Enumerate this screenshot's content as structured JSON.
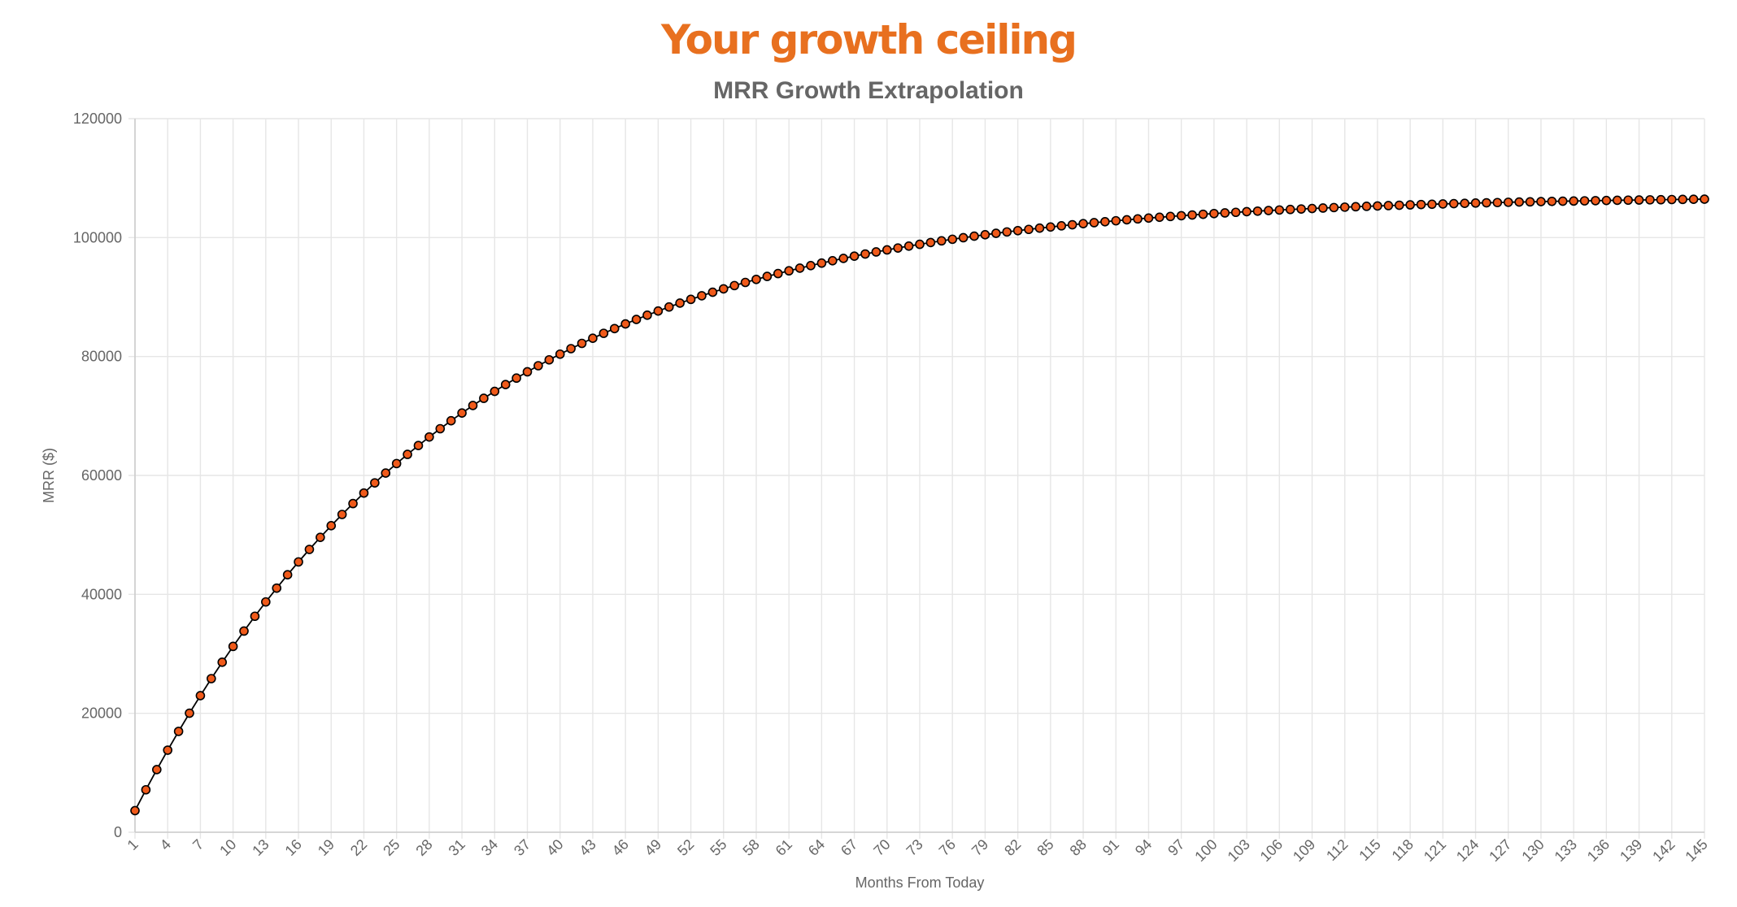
{
  "page": {
    "headline": "Your growth ceiling",
    "headline_color": "#E8701F"
  },
  "chart_data": {
    "type": "line",
    "title": "MRR Growth Extrapolation",
    "xlabel": "Months From Today",
    "ylabel": "MRR ($)",
    "ylim": [
      0,
      120000
    ],
    "yticks": [
      0,
      20000,
      40000,
      60000,
      80000,
      100000,
      120000
    ],
    "x_range": [
      1,
      145
    ],
    "x_tick_step": 3,
    "grid": true,
    "legend": "none",
    "model": "y = 110000 - 110000 * 0.967^x",
    "series": [
      {
        "line_color": "#000000",
        "marker_fill": "#F05A1A",
        "marker_stroke": "#000000",
        "x": [
          1,
          2,
          3,
          4,
          5,
          6,
          7,
          8,
          9,
          10,
          11,
          12,
          13,
          14,
          15,
          16,
          17,
          18,
          19,
          20,
          21,
          22,
          23,
          24,
          25,
          26,
          27,
          28,
          29,
          30,
          31,
          32,
          33,
          34,
          35,
          36,
          37,
          38,
          39,
          40,
          41,
          42,
          43,
          44,
          45,
          46,
          47,
          48,
          49,
          50,
          51,
          52,
          53,
          54,
          55,
          56,
          57,
          58,
          59,
          60,
          61,
          62,
          63,
          64,
          65,
          66,
          67,
          68,
          69,
          70,
          71,
          72,
          73,
          74,
          75,
          76,
          77,
          78,
          79,
          80,
          81,
          82,
          83,
          84,
          85,
          86,
          87,
          88,
          89,
          90,
          91,
          92,
          93,
          94,
          95,
          96,
          97,
          98,
          99,
          100,
          101,
          102,
          103,
          104,
          105,
          106,
          107,
          108,
          109,
          110,
          111,
          112,
          113,
          114,
          115,
          116,
          117,
          118,
          119,
          120,
          121,
          122,
          123,
          124,
          125,
          126,
          127,
          128,
          129,
          130,
          131,
          132,
          133,
          134,
          135,
          136,
          137,
          138,
          139,
          140,
          141,
          142,
          143,
          144,
          145
        ],
        "values": [
          3630,
          7140,
          10530,
          13800,
          16960,
          20020,
          22970,
          25830,
          28590,
          31250,
          33830,
          36320,
          38730,
          41050,
          43300,
          45460,
          47560,
          49590,
          51550,
          53440,
          55270,
          57040,
          58750,
          60400,
          62000,
          63540,
          65030,
          66470,
          67860,
          69200,
          70500,
          71760,
          72970,
          74140,
          75280,
          76370,
          77430,
          78450,
          79440,
          80400,
          81320,
          82210,
          83070,
          83900,
          84700,
          85480,
          86230,
          86950,
          87650,
          88330,
          88980,
          89610,
          90220,
          90810,
          91380,
          91930,
          92460,
          92970,
          93470,
          93950,
          94410,
          94860,
          95290,
          95710,
          96110,
          96500,
          96880,
          97240,
          97590,
          97930,
          98250,
          98570,
          98870,
          99170,
          99450,
          99720,
          99980,
          100240,
          100480,
          100720,
          100950,
          101170,
          101380,
          101590,
          101780,
          101980,
          102160,
          102340,
          102510,
          102670,
          102830,
          102990,
          103140,
          103280,
          103420,
          103550,
          103680,
          103800,
          103920,
          104040,
          104150,
          104250,
          104360,
          104450,
          104550,
          104640,
          104730,
          104810,
          104890,
          104970,
          105050,
          105120,
          105190,
          105260,
          105320,
          105380,
          105440,
          105500,
          105560,
          105610,
          105660,
          105710,
          105760,
          105810,
          105850,
          105890,
          105940,
          105980,
          106010,
          106050,
          106090,
          106120,
          106150,
          106180,
          106210,
          106240,
          106270,
          106300,
          106320,
          106350,
          106370,
          106400,
          106420,
          106440,
          106460
        ]
      }
    ]
  }
}
